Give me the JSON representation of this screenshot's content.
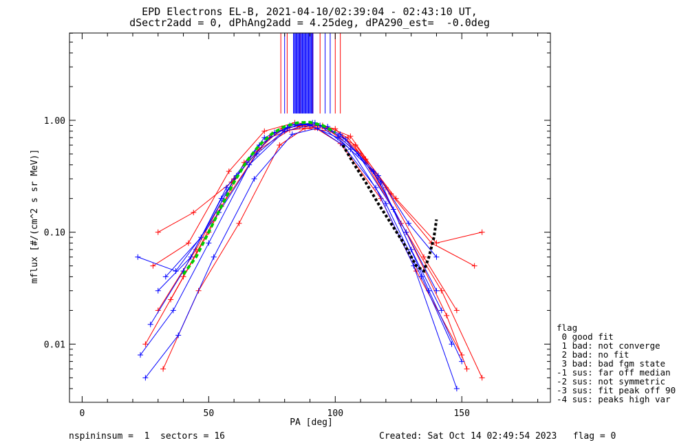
{
  "header": {
    "title_line1": "EPD Electrons EL-B, 2021-04-10/02:39:04 - 02:43:10 UT,",
    "title_line2": "dSectr2add = 0, dPhAng2add = 4.25deg, dPA290_est=  -0.0deg"
  },
  "footer": {
    "left": "nspininsum =  1  sectors = 16",
    "right": "Created: Sat Oct 14 02:49:54 2023   flag = 0"
  },
  "legend": {
    "title": "flag",
    "items": [
      " 0 good fit",
      " 1 bad: not converge",
      " 2 bad: no fit",
      " 3 bad: bad fgm state",
      "-1 sus: far off median",
      "-2 sus: not symmetric",
      "-3 sus: fit peak off 90",
      "-4 sus: peaks high var"
    ]
  },
  "colors": {
    "series_a": "#ff0000",
    "series_b": "#0000ff",
    "fit_green": "#00cc00",
    "fit_black": "#000000",
    "axes": "#000000"
  },
  "chart_data": {
    "type": "line",
    "xlabel": "PA [deg]",
    "ylabel": "mflux [#/(cm^2 s sr MeV)]",
    "xlim": [
      -5,
      185
    ],
    "ylim_log10": [
      -2.52,
      0.78
    ],
    "y_log_scale": true,
    "x_ticks": [
      0,
      50,
      100,
      150
    ],
    "y_ticks": [
      {
        "value": 0.01,
        "label": "0.01"
      },
      {
        "value": 0.1,
        "label": "0.10"
      },
      {
        "value": 1.0,
        "label": "1.00"
      }
    ],
    "series": [
      {
        "color": "red",
        "marker": "+",
        "curves": [
          {
            "x": [
              30,
              45,
              60,
              75,
              85,
              95,
              105,
              120,
              135,
              148
            ],
            "y": [
              0.02,
              0.07,
              0.3,
              0.75,
              0.9,
              0.88,
              0.7,
              0.25,
              0.06,
              0.02
            ]
          },
          {
            "x": [
              25,
              40,
              55,
              70,
              82,
              92,
              102,
              118,
              132,
              150
            ],
            "y": [
              0.01,
              0.04,
              0.17,
              0.55,
              0.82,
              0.86,
              0.62,
              0.2,
              0.045,
              0.008
            ]
          },
          {
            "x": [
              28,
              42,
              58,
              72,
              84,
              95,
              106,
              122,
              138,
              155
            ],
            "y": [
              0.05,
              0.08,
              0.35,
              0.8,
              0.95,
              0.9,
              0.72,
              0.22,
              0.08,
              0.05
            ]
          },
          {
            "x": [
              32,
              46,
              62,
              78,
              88,
              98,
              110,
              126,
              142,
              158
            ],
            "y": [
              0.006,
              0.03,
              0.12,
              0.6,
              0.85,
              0.8,
              0.5,
              0.12,
              0.03,
              0.005
            ]
          },
          {
            "x": [
              35,
              50,
              64,
              79,
              90,
              100,
              112,
              128,
              144,
              152
            ],
            "y": [
              0.025,
              0.1,
              0.42,
              0.85,
              0.92,
              0.84,
              0.45,
              0.1,
              0.018,
              0.006
            ]
          },
          {
            "x": [
              30,
              44,
              59,
              74,
              86,
              96,
              108,
              124,
              140,
              158
            ],
            "y": [
              0.1,
              0.15,
              0.28,
              0.7,
              0.88,
              0.85,
              0.6,
              0.2,
              0.08,
              0.1
            ]
          }
        ]
      },
      {
        "color": "blue",
        "marker": "+",
        "curves": [
          {
            "x": [
              27,
              40,
              55,
              70,
              82,
              92,
              104,
              118,
              130,
              142
            ],
            "y": [
              0.015,
              0.045,
              0.2,
              0.6,
              0.9,
              0.95,
              0.68,
              0.28,
              0.07,
              0.02
            ]
          },
          {
            "x": [
              23,
              36,
              50,
              66,
              80,
              90,
              101,
              115,
              128,
              140
            ],
            "y": [
              0.008,
              0.02,
              0.08,
              0.4,
              0.8,
              0.9,
              0.7,
              0.35,
              0.1,
              0.03
            ]
          },
          {
            "x": [
              30,
              43,
              57,
              72,
              84,
              94,
              106,
              120,
              134,
              146
            ],
            "y": [
              0.03,
              0.06,
              0.25,
              0.7,
              0.92,
              0.9,
              0.55,
              0.18,
              0.04,
              0.01
            ]
          },
          {
            "x": [
              25,
              38,
              52,
              68,
              83,
              93,
              103,
              116,
              131,
              148
            ],
            "y": [
              0.005,
              0.012,
              0.06,
              0.3,
              0.75,
              0.85,
              0.6,
              0.25,
              0.05,
              0.004
            ]
          },
          {
            "x": [
              22,
              37,
              54,
              69,
              81,
              91,
              102,
              117,
              129,
              140
            ],
            "y": [
              0.06,
              0.045,
              0.15,
              0.5,
              0.85,
              0.95,
              0.75,
              0.32,
              0.12,
              0.06
            ]
          },
          {
            "x": [
              33,
              47,
              61,
              76,
              87,
              97,
              109,
              123,
              137,
              150
            ],
            "y": [
              0.04,
              0.09,
              0.32,
              0.78,
              0.93,
              0.88,
              0.5,
              0.16,
              0.03,
              0.007
            ]
          }
        ]
      }
    ],
    "fit_green": {
      "x": [
        40,
        45,
        50,
        55,
        60,
        65,
        70,
        75,
        80,
        85,
        90,
        95,
        100
      ],
      "y": [
        0.042,
        0.06,
        0.1,
        0.17,
        0.28,
        0.43,
        0.6,
        0.76,
        0.88,
        0.95,
        0.96,
        0.9,
        0.78
      ]
    },
    "fit_black": {
      "x": [
        103,
        107,
        112,
        117,
        122,
        127,
        132,
        135,
        137,
        139,
        140
      ],
      "y": [
        0.6,
        0.42,
        0.28,
        0.18,
        0.12,
        0.08,
        0.05,
        0.045,
        0.06,
        0.09,
        0.13
      ]
    },
    "vertical_lines_red": [
      78.5,
      81,
      86,
      91,
      94,
      100,
      102
    ],
    "vertical_lines_blue_range": [
      83.5,
      91.5
    ],
    "vertical_lines_blue_extra": [
      80,
      96,
      98
    ]
  }
}
